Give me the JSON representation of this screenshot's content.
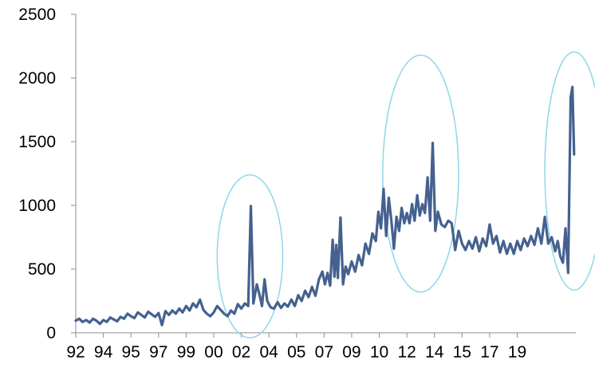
{
  "chart_data": {
    "type": "line",
    "title": "",
    "xlabel": "",
    "ylabel": "",
    "ylim": [
      0,
      2500
    ],
    "xlim": [
      1992,
      2021
    ],
    "grid": false,
    "legend": "none",
    "y_ticks": [
      "0",
      "500",
      "1000",
      "1500",
      "2000",
      "2500"
    ],
    "x_ticks": [
      {
        "label": "92",
        "x": 1992.0
      },
      {
        "label": "94",
        "x": 1993.6
      },
      {
        "label": "95",
        "x": 1995.2
      },
      {
        "label": "97",
        "x": 1996.8
      },
      {
        "label": "99",
        "x": 1998.4
      },
      {
        "label": "00",
        "x": 2000.0
      },
      {
        "label": "02",
        "x": 2001.6
      },
      {
        "label": "04",
        "x": 2003.2
      },
      {
        "label": "05",
        "x": 2004.8
      },
      {
        "label": "07",
        "x": 2006.4
      },
      {
        "label": "09",
        "x": 2008.0
      },
      {
        "label": "10",
        "x": 2009.6
      },
      {
        "label": "12",
        "x": 2011.2
      },
      {
        "label": "14",
        "x": 2012.8
      },
      {
        "label": "15",
        "x": 2014.4
      },
      {
        "label": "17",
        "x": 2016.0
      },
      {
        "label": "19",
        "x": 2017.6
      }
    ],
    "series": [
      {
        "color": "#44618f",
        "points": [
          [
            1992.0,
            95
          ],
          [
            1992.2,
            110
          ],
          [
            1992.4,
            85
          ],
          [
            1992.6,
            100
          ],
          [
            1992.8,
            80
          ],
          [
            1993.0,
            110
          ],
          [
            1993.2,
            95
          ],
          [
            1993.4,
            70
          ],
          [
            1993.6,
            100
          ],
          [
            1993.8,
            85
          ],
          [
            1994.0,
            120
          ],
          [
            1994.2,
            105
          ],
          [
            1994.4,
            90
          ],
          [
            1994.6,
            125
          ],
          [
            1994.8,
            110
          ],
          [
            1995.0,
            150
          ],
          [
            1995.2,
            130
          ],
          [
            1995.4,
            115
          ],
          [
            1995.6,
            160
          ],
          [
            1995.8,
            140
          ],
          [
            1996.0,
            120
          ],
          [
            1996.2,
            165
          ],
          [
            1996.4,
            145
          ],
          [
            1996.6,
            125
          ],
          [
            1996.8,
            155
          ],
          [
            1997.0,
            60
          ],
          [
            1997.2,
            170
          ],
          [
            1997.4,
            140
          ],
          [
            1997.6,
            175
          ],
          [
            1997.8,
            150
          ],
          [
            1998.0,
            190
          ],
          [
            1998.2,
            160
          ],
          [
            1998.4,
            210
          ],
          [
            1998.6,
            175
          ],
          [
            1998.8,
            230
          ],
          [
            1999.0,
            200
          ],
          [
            1999.2,
            260
          ],
          [
            1999.4,
            180
          ],
          [
            1999.6,
            150
          ],
          [
            1999.8,
            130
          ],
          [
            2000.0,
            160
          ],
          [
            2000.2,
            210
          ],
          [
            2000.4,
            180
          ],
          [
            2000.6,
            150
          ],
          [
            2000.8,
            130
          ],
          [
            2001.0,
            175
          ],
          [
            2001.2,
            150
          ],
          [
            2001.4,
            225
          ],
          [
            2001.6,
            190
          ],
          [
            2001.8,
            230
          ],
          [
            2002.0,
            210
          ],
          [
            2002.15,
            995
          ],
          [
            2002.3,
            230
          ],
          [
            2002.5,
            380
          ],
          [
            2002.65,
            300
          ],
          [
            2002.8,
            210
          ],
          [
            2002.95,
            420
          ],
          [
            2003.1,
            250
          ],
          [
            2003.3,
            200
          ],
          [
            2003.5,
            190
          ],
          [
            2003.7,
            240
          ],
          [
            2003.9,
            195
          ],
          [
            2004.1,
            230
          ],
          [
            2004.3,
            205
          ],
          [
            2004.5,
            260
          ],
          [
            2004.7,
            210
          ],
          [
            2004.9,
            295
          ],
          [
            2005.1,
            250
          ],
          [
            2005.3,
            330
          ],
          [
            2005.5,
            280
          ],
          [
            2005.7,
            360
          ],
          [
            2005.9,
            290
          ],
          [
            2006.1,
            420
          ],
          [
            2006.3,
            480
          ],
          [
            2006.45,
            380
          ],
          [
            2006.6,
            470
          ],
          [
            2006.75,
            370
          ],
          [
            2006.9,
            730
          ],
          [
            2007.0,
            440
          ],
          [
            2007.1,
            690
          ],
          [
            2007.2,
            430
          ],
          [
            2007.35,
            905
          ],
          [
            2007.5,
            380
          ],
          [
            2007.65,
            520
          ],
          [
            2007.8,
            460
          ],
          [
            2008.0,
            560
          ],
          [
            2008.2,
            480
          ],
          [
            2008.4,
            610
          ],
          [
            2008.6,
            530
          ],
          [
            2008.8,
            700
          ],
          [
            2009.0,
            620
          ],
          [
            2009.2,
            780
          ],
          [
            2009.4,
            720
          ],
          [
            2009.55,
            950
          ],
          [
            2009.7,
            820
          ],
          [
            2009.85,
            1130
          ],
          [
            2010.0,
            760
          ],
          [
            2010.15,
            1060
          ],
          [
            2010.3,
            880
          ],
          [
            2010.45,
            660
          ],
          [
            2010.6,
            910
          ],
          [
            2010.75,
            800
          ],
          [
            2010.9,
            980
          ],
          [
            2011.05,
            860
          ],
          [
            2011.2,
            940
          ],
          [
            2011.35,
            860
          ],
          [
            2011.5,
            1010
          ],
          [
            2011.65,
            880
          ],
          [
            2011.8,
            1080
          ],
          [
            2011.95,
            920
          ],
          [
            2012.1,
            1010
          ],
          [
            2012.25,
            940
          ],
          [
            2012.4,
            1220
          ],
          [
            2012.55,
            880
          ],
          [
            2012.7,
            1490
          ],
          [
            2012.85,
            800
          ],
          [
            2013.0,
            950
          ],
          [
            2013.2,
            850
          ],
          [
            2013.4,
            830
          ],
          [
            2013.6,
            880
          ],
          [
            2013.8,
            860
          ],
          [
            2014.0,
            650
          ],
          [
            2014.2,
            800
          ],
          [
            2014.4,
            700
          ],
          [
            2014.6,
            650
          ],
          [
            2014.8,
            720
          ],
          [
            2015.0,
            660
          ],
          [
            2015.2,
            750
          ],
          [
            2015.4,
            640
          ],
          [
            2015.6,
            740
          ],
          [
            2015.8,
            680
          ],
          [
            2016.0,
            850
          ],
          [
            2016.2,
            700
          ],
          [
            2016.4,
            760
          ],
          [
            2016.6,
            630
          ],
          [
            2016.8,
            720
          ],
          [
            2017.0,
            620
          ],
          [
            2017.2,
            700
          ],
          [
            2017.4,
            620
          ],
          [
            2017.6,
            720
          ],
          [
            2017.8,
            650
          ],
          [
            2018.0,
            740
          ],
          [
            2018.2,
            680
          ],
          [
            2018.4,
            760
          ],
          [
            2018.6,
            690
          ],
          [
            2018.8,
            820
          ],
          [
            2019.0,
            700
          ],
          [
            2019.2,
            910
          ],
          [
            2019.4,
            700
          ],
          [
            2019.6,
            750
          ],
          [
            2019.8,
            640
          ],
          [
            2019.95,
            720
          ],
          [
            2020.1,
            600
          ],
          [
            2020.25,
            550
          ],
          [
            2020.4,
            820
          ],
          [
            2020.55,
            470
          ],
          [
            2020.7,
            1850
          ],
          [
            2020.8,
            1930
          ],
          [
            2020.9,
            1400
          ]
        ]
      }
    ],
    "annotations": [
      {
        "type": "ellipse",
        "color": "#8fd6ea",
        "cx": 2002.1,
        "cy": 600,
        "rx": 1.9,
        "ry": 640
      },
      {
        "type": "ellipse",
        "color": "#8fd6ea",
        "cx": 2012.0,
        "cy": 1250,
        "rx": 2.2,
        "ry": 930
      },
      {
        "type": "ellipse",
        "color": "#8fd6ea",
        "cx": 2020.9,
        "cy": 1270,
        "rx": 1.7,
        "ry": 935
      }
    ]
  }
}
